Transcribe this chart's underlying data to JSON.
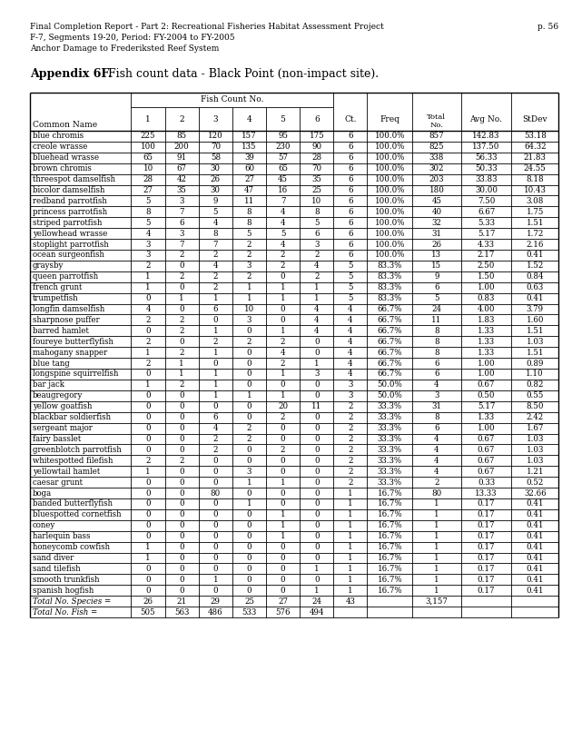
{
  "header_text_line1": "Final Completion Report - Part 2: Recreational Fisheries Habitat Assessment Project",
  "header_text_line2": "F-7, Segments 19-20, Period: FY-2004 to FY-2005",
  "header_text_line3": "Anchor Damage to Frederiksted Reef System",
  "page_number": "p. 56",
  "appendix_title_bold": "Appendix 6F.",
  "appendix_title_normal": "  Fish count data - Black Point (non-impact site).",
  "fish_count_label": "Fish Count No.",
  "col_headers": [
    "Common Name",
    "1",
    "2",
    "3",
    "4",
    "5",
    "6",
    "Ct.",
    "Freq",
    "Total\nNo.",
    "Avg No.",
    "StDev"
  ],
  "rows": [
    [
      "blue chromis",
      "225",
      "85",
      "120",
      "157",
      "95",
      "175",
      "6",
      "100.0%",
      "857",
      "142.83",
      "53.18"
    ],
    [
      "creole wrasse",
      "100",
      "200",
      "70",
      "135",
      "230",
      "90",
      "6",
      "100.0%",
      "825",
      "137.50",
      "64.32"
    ],
    [
      "bluehead wrasse",
      "65",
      "91",
      "58",
      "39",
      "57",
      "28",
      "6",
      "100.0%",
      "338",
      "56.33",
      "21.83"
    ],
    [
      "brown chromis",
      "10",
      "67",
      "30",
      "60",
      "65",
      "70",
      "6",
      "100.0%",
      "302",
      "50.33",
      "24.55"
    ],
    [
      "threespot damselfish",
      "28",
      "42",
      "26",
      "27",
      "45",
      "35",
      "6",
      "100.0%",
      "203",
      "33.83",
      "8.18"
    ],
    [
      "bicolor damselfish",
      "27",
      "35",
      "30",
      "47",
      "16",
      "25",
      "6",
      "100.0%",
      "180",
      "30.00",
      "10.43"
    ],
    [
      "redband parrotfish",
      "5",
      "3",
      "9",
      "11",
      "7",
      "10",
      "6",
      "100.0%",
      "45",
      "7.50",
      "3.08"
    ],
    [
      "princess parrotfish",
      "8",
      "7",
      "5",
      "8",
      "4",
      "8",
      "6",
      "100.0%",
      "40",
      "6.67",
      "1.75"
    ],
    [
      "striped parrotfish",
      "5",
      "6",
      "4",
      "8",
      "4",
      "5",
      "6",
      "100.0%",
      "32",
      "5.33",
      "1.51"
    ],
    [
      "yellowhead wrasse",
      "4",
      "3",
      "8",
      "5",
      "5",
      "6",
      "6",
      "100.0%",
      "31",
      "5.17",
      "1.72"
    ],
    [
      "stoplight parrotfish",
      "3",
      "7",
      "7",
      "2",
      "4",
      "3",
      "6",
      "100.0%",
      "26",
      "4.33",
      "2.16"
    ],
    [
      "ocean surgeonfish",
      "3",
      "2",
      "2",
      "2",
      "2",
      "2",
      "6",
      "100.0%",
      "13",
      "2.17",
      "0.41"
    ],
    [
      "graysby",
      "2",
      "0",
      "4",
      "3",
      "2",
      "4",
      "5",
      "83.3%",
      "15",
      "2.50",
      "1.52"
    ],
    [
      "queen parrotfish",
      "1",
      "2",
      "2",
      "2",
      "0",
      "2",
      "5",
      "83.3%",
      "9",
      "1.50",
      "0.84"
    ],
    [
      "french grunt",
      "1",
      "0",
      "2",
      "1",
      "1",
      "1",
      "5",
      "83.3%",
      "6",
      "1.00",
      "0.63"
    ],
    [
      "trumpetfish",
      "0",
      "1",
      "1",
      "1",
      "1",
      "1",
      "5",
      "83.3%",
      "5",
      "0.83",
      "0.41"
    ],
    [
      "longfin damselfish",
      "4",
      "0",
      "6",
      "10",
      "0",
      "4",
      "4",
      "66.7%",
      "24",
      "4.00",
      "3.79"
    ],
    [
      "sharpnose puffer",
      "2",
      "2",
      "0",
      "3",
      "0",
      "4",
      "4",
      "66.7%",
      "11",
      "1.83",
      "1.60"
    ],
    [
      "barred hamlet",
      "0",
      "2",
      "1",
      "0",
      "1",
      "4",
      "4",
      "66.7%",
      "8",
      "1.33",
      "1.51"
    ],
    [
      "foureye butterflyfish",
      "2",
      "0",
      "2",
      "2",
      "2",
      "0",
      "4",
      "66.7%",
      "8",
      "1.33",
      "1.03"
    ],
    [
      "mahogany snapper",
      "1",
      "2",
      "1",
      "0",
      "4",
      "0",
      "4",
      "66.7%",
      "8",
      "1.33",
      "1.51"
    ],
    [
      "blue tang",
      "2",
      "1",
      "0",
      "0",
      "2",
      "1",
      "4",
      "66.7%",
      "6",
      "1.00",
      "0.89"
    ],
    [
      "longspine squirrelfish",
      "0",
      "1",
      "1",
      "0",
      "1",
      "3",
      "4",
      "66.7%",
      "6",
      "1.00",
      "1.10"
    ],
    [
      "bar jack",
      "1",
      "2",
      "1",
      "0",
      "0",
      "0",
      "3",
      "50.0%",
      "4",
      "0.67",
      "0.82"
    ],
    [
      "beaugregory",
      "0",
      "0",
      "1",
      "1",
      "1",
      "0",
      "3",
      "50.0%",
      "3",
      "0.50",
      "0.55"
    ],
    [
      "yellow goatfish",
      "0",
      "0",
      "0",
      "0",
      "20",
      "11",
      "2",
      "33.3%",
      "31",
      "5.17",
      "8.50"
    ],
    [
      "blackbar soldierfish",
      "0",
      "0",
      "6",
      "0",
      "2",
      "0",
      "2",
      "33.3%",
      "8",
      "1.33",
      "2.42"
    ],
    [
      "sergeant major",
      "0",
      "0",
      "4",
      "2",
      "0",
      "0",
      "2",
      "33.3%",
      "6",
      "1.00",
      "1.67"
    ],
    [
      "fairy basslet",
      "0",
      "0",
      "2",
      "2",
      "0",
      "0",
      "2",
      "33.3%",
      "4",
      "0.67",
      "1.03"
    ],
    [
      "greenblotch parrotfish",
      "0",
      "0",
      "2",
      "0",
      "2",
      "0",
      "2",
      "33.3%",
      "4",
      "0.67",
      "1.03"
    ],
    [
      "whitespotted filefish",
      "2",
      "2",
      "0",
      "0",
      "0",
      "0",
      "2",
      "33.3%",
      "4",
      "0.67",
      "1.03"
    ],
    [
      "yellowtail hamlet",
      "1",
      "0",
      "0",
      "3",
      "0",
      "0",
      "2",
      "33.3%",
      "4",
      "0.67",
      "1.21"
    ],
    [
      "caesar grunt",
      "0",
      "0",
      "0",
      "1",
      "1",
      "0",
      "2",
      "33.3%",
      "2",
      "0.33",
      "0.52"
    ],
    [
      "boga",
      "0",
      "0",
      "80",
      "0",
      "0",
      "0",
      "1",
      "16.7%",
      "80",
      "13.33",
      "32.66"
    ],
    [
      "banded butterflyfish",
      "0",
      "0",
      "0",
      "1",
      "0",
      "0",
      "1",
      "16.7%",
      "1",
      "0.17",
      "0.41"
    ],
    [
      "bluespotted cornetfish",
      "0",
      "0",
      "0",
      "0",
      "1",
      "0",
      "1",
      "16.7%",
      "1",
      "0.17",
      "0.41"
    ],
    [
      "coney",
      "0",
      "0",
      "0",
      "0",
      "1",
      "0",
      "1",
      "16.7%",
      "1",
      "0.17",
      "0.41"
    ],
    [
      "harlequin bass",
      "0",
      "0",
      "0",
      "0",
      "1",
      "0",
      "1",
      "16.7%",
      "1",
      "0.17",
      "0.41"
    ],
    [
      "honeycomb cowfish",
      "1",
      "0",
      "0",
      "0",
      "0",
      "0",
      "1",
      "16.7%",
      "1",
      "0.17",
      "0.41"
    ],
    [
      "sand diver",
      "1",
      "0",
      "0",
      "0",
      "0",
      "0",
      "1",
      "16.7%",
      "1",
      "0.17",
      "0.41"
    ],
    [
      "sand tilefish",
      "0",
      "0",
      "0",
      "0",
      "0",
      "1",
      "1",
      "16.7%",
      "1",
      "0.17",
      "0.41"
    ],
    [
      "smooth trunkfish",
      "0",
      "0",
      "1",
      "0",
      "0",
      "0",
      "1",
      "16.7%",
      "1",
      "0.17",
      "0.41"
    ],
    [
      "spanish hogfish",
      "0",
      "0",
      "0",
      "0",
      "0",
      "1",
      "1",
      "16.7%",
      "1",
      "0.17",
      "0.41"
    ]
  ],
  "totals_species": [
    "Total No. Species =",
    "26",
    "21",
    "29",
    "25",
    "27",
    "24",
    "43",
    "",
    "3,157",
    "",
    ""
  ],
  "totals_fish": [
    "Total No. Fish =",
    "505",
    "563",
    "486",
    "533",
    "576",
    "494",
    "",
    "",
    "",
    "",
    ""
  ]
}
